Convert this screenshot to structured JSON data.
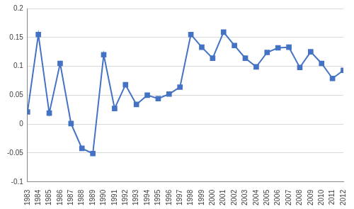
{
  "chart_data": {
    "type": "line",
    "categories": [
      "1983",
      "1984",
      "1985",
      "1986",
      "1987",
      "1988",
      "1989",
      "1990",
      "1991",
      "1992",
      "1993",
      "1994",
      "1995",
      "1996",
      "1997",
      "1998",
      "1999",
      "2000",
      "2001",
      "2002",
      "2003",
      "2004",
      "2005",
      "2006",
      "2007",
      "2008",
      "2009",
      "2010",
      "2011",
      "2012"
    ],
    "values": [
      0.021,
      0.155,
      0.019,
      0.105,
      0.001,
      -0.042,
      -0.051,
      0.12,
      0.027,
      0.068,
      0.034,
      0.05,
      0.044,
      0.052,
      0.064,
      0.155,
      0.133,
      0.114,
      0.159,
      0.136,
      0.114,
      0.099,
      0.124,
      0.132,
      0.133,
      0.098,
      0.125,
      0.105,
      0.079,
      0.093
    ],
    "color": "#4472c4",
    "marker": "square",
    "line_style": "solid",
    "ylim": [
      -0.1,
      0.2
    ],
    "yticks": [
      -0.1,
      -0.05,
      0,
      0.05,
      0.1,
      0.15,
      0.2
    ],
    "grid": true
  }
}
